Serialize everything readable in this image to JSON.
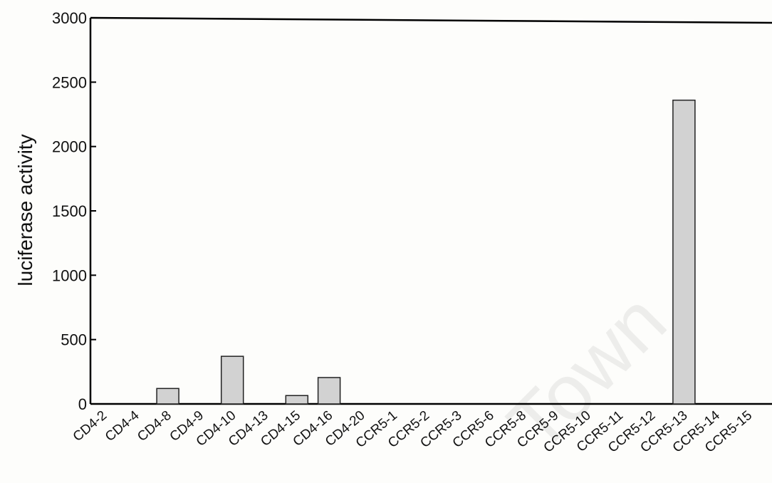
{
  "chart_data": {
    "type": "bar",
    "title": "",
    "xlabel": "",
    "ylabel": "luciferase activity",
    "categories": [
      "CD4-2",
      "CD4-4",
      "CD4-8",
      "CD4-9",
      "CD4-10",
      "CD4-13",
      "CD4-15",
      "CD4-16",
      "CD4-20",
      "CCR5-1",
      "CCR5-2",
      "CCR5-3",
      "CCR5-6",
      "CCR5-8",
      "CCR5-9",
      "CCR5-10",
      "CCR5-11",
      "CCR5-12",
      "CCR5-13",
      "CCR5-14",
      "CCR5-15"
    ],
    "values": [
      0,
      0,
      120,
      0,
      370,
      0,
      65,
      205,
      0,
      0,
      0,
      0,
      0,
      0,
      0,
      0,
      0,
      0,
      2360,
      0,
      0
    ],
    "ylim": [
      0,
      3000
    ],
    "yticks": [
      0,
      500,
      1000,
      1500,
      2000,
      2500,
      3000
    ],
    "grid": false,
    "legend": "none",
    "colors": {
      "bar": "#d2d2d2",
      "axis": "#000000"
    }
  },
  "watermark": {
    "text": "Town"
  }
}
